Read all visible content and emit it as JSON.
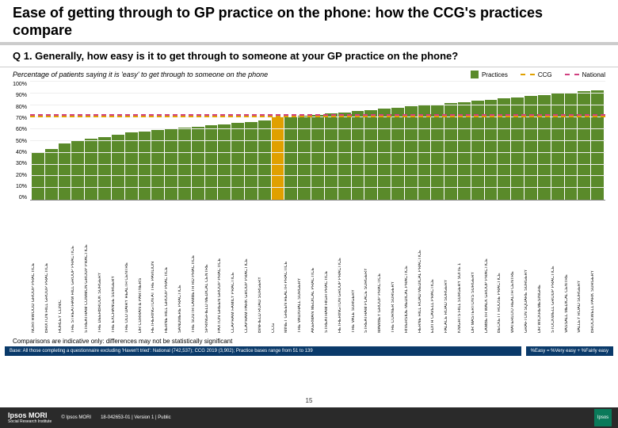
{
  "title": "Ease of getting through to GP practice on the phone: how the CCG's practices compare",
  "question": "Q 1. Generally, how easy is it to get through to someone at your GP practice on the phone?",
  "subtitle": "Percentage of patients saying it is 'easy' to get through to someone on the phone",
  "legend": {
    "practices": {
      "label": "Practices",
      "color": "#5a8a2a"
    },
    "ccg": {
      "label": "CCG",
      "color": "#e0a000"
    },
    "national": {
      "label": "National",
      "color": "#d04080"
    }
  },
  "chart": {
    "type": "bar",
    "ylim": [
      0,
      100
    ],
    "ytick_step": 10,
    "yticks": [
      "0%",
      "10%",
      "20%",
      "30%",
      "40%",
      "50%",
      "60%",
      "70%",
      "80%",
      "90%",
      "100%"
    ],
    "grid_color": "#eeeeee",
    "bar_color": "#5a8a2a",
    "ccg_line": {
      "value": 70,
      "color": "#e0a000"
    },
    "national_line": {
      "value": 71,
      "color": "#d04080"
    },
    "categories": [
      "NORTHWOOD GROUP PRACTICE",
      "BRIXTON HILL GROUP PRACTICE",
      "HURLEY CLINIC",
      "THE STREATHAM HILL GROUP PRACTICE",
      "STREATHAM COMMON GROUP PRACTICE",
      "THE DEERBROOK SURGERY",
      "THE EXCHANGE SURGERY",
      "THE OLD DAIRY HEALTH CENTRE",
      "DR CURRAN & PARTNERS",
      "HETHERINGTON AT THE PAVILION",
      "HERNE HILL GROUP PRACTICE",
      "SANDMERE PRACTICE",
      "THE SOUTH LAMBETH RD PRACTICE",
      "SPRINGFIELD MEDICAL CENTRE",
      "PAXTON GREEN GROUP PRACTICE",
      "CLAPHAM FAMILY PRACTICE",
      "CLAPHAM PARK GROUP PRACTICE",
      "BINFIELD ROAD SURGERY",
      "CCG",
      "MINET GREEN HEALTH PRACTICE",
      "THE VAUXHALL SURGERY",
      "AKERMAN MEDICAL PRACTICE",
      "STREATHAM HIGH PRACTICE",
      "HETHERINGTON GROUP PRACTICE",
      "THE VALE SURGERY",
      "STREATHAM PLACE SURGERY",
      "MAWBEY GROUP PRACTICE",
      "THE CORNER SURGERY",
      "RIVERSIDE MEDICAL PRACTICE",
      "HERNE HILL ROAD MEDICAL PRACTICE",
      "EDITH CAVELL PRACTICE",
      "PALACE ROAD SURGERY",
      "KNIGHTS HILL SURGERY SUITE 1",
      "DR MASTERTON'S SURGERY",
      "LAMBETH WALK GROUP PRACTICE",
      "BECKETT HOUSE PRACTICE",
      "WATERLOO HEALTH CENTRE",
      "GRAFTON SQUARE SURGERY",
      "DR WICKREMESINGHE",
      "STOCKWELL GROUP PRACTICE",
      "VASSALL MEDICAL CENTRE",
      "VALLEY ROAD SURGERY",
      "BROCKWELL PARK SURGERY"
    ],
    "values": [
      40,
      43,
      48,
      50,
      52,
      53,
      55,
      57,
      58,
      59,
      60,
      61,
      62,
      63,
      64,
      65,
      66,
      67,
      70,
      70,
      71,
      72,
      73,
      74,
      75,
      76,
      77,
      78,
      79,
      80,
      81,
      82,
      83,
      84,
      85,
      86,
      87,
      88,
      89,
      90,
      91,
      92,
      93
    ]
  },
  "comparison_note": "Comparisons are indicative only: differences may not be statistically significant",
  "base_text": "Base: All those completing a questionnaire excluding 'Haven't tried': National (742,537); CCG 2019 (3,902); Practice bases range from 51 to 139",
  "easy_def": "%Easy = %Very easy + %Fairly easy",
  "page_number": "15",
  "footer": {
    "logo": "Ipsos MORI",
    "logo_sub": "Social Research Institute",
    "copyright": "© Ipsos MORI",
    "ref": "18-042653-01 | Version 1 | Public"
  }
}
